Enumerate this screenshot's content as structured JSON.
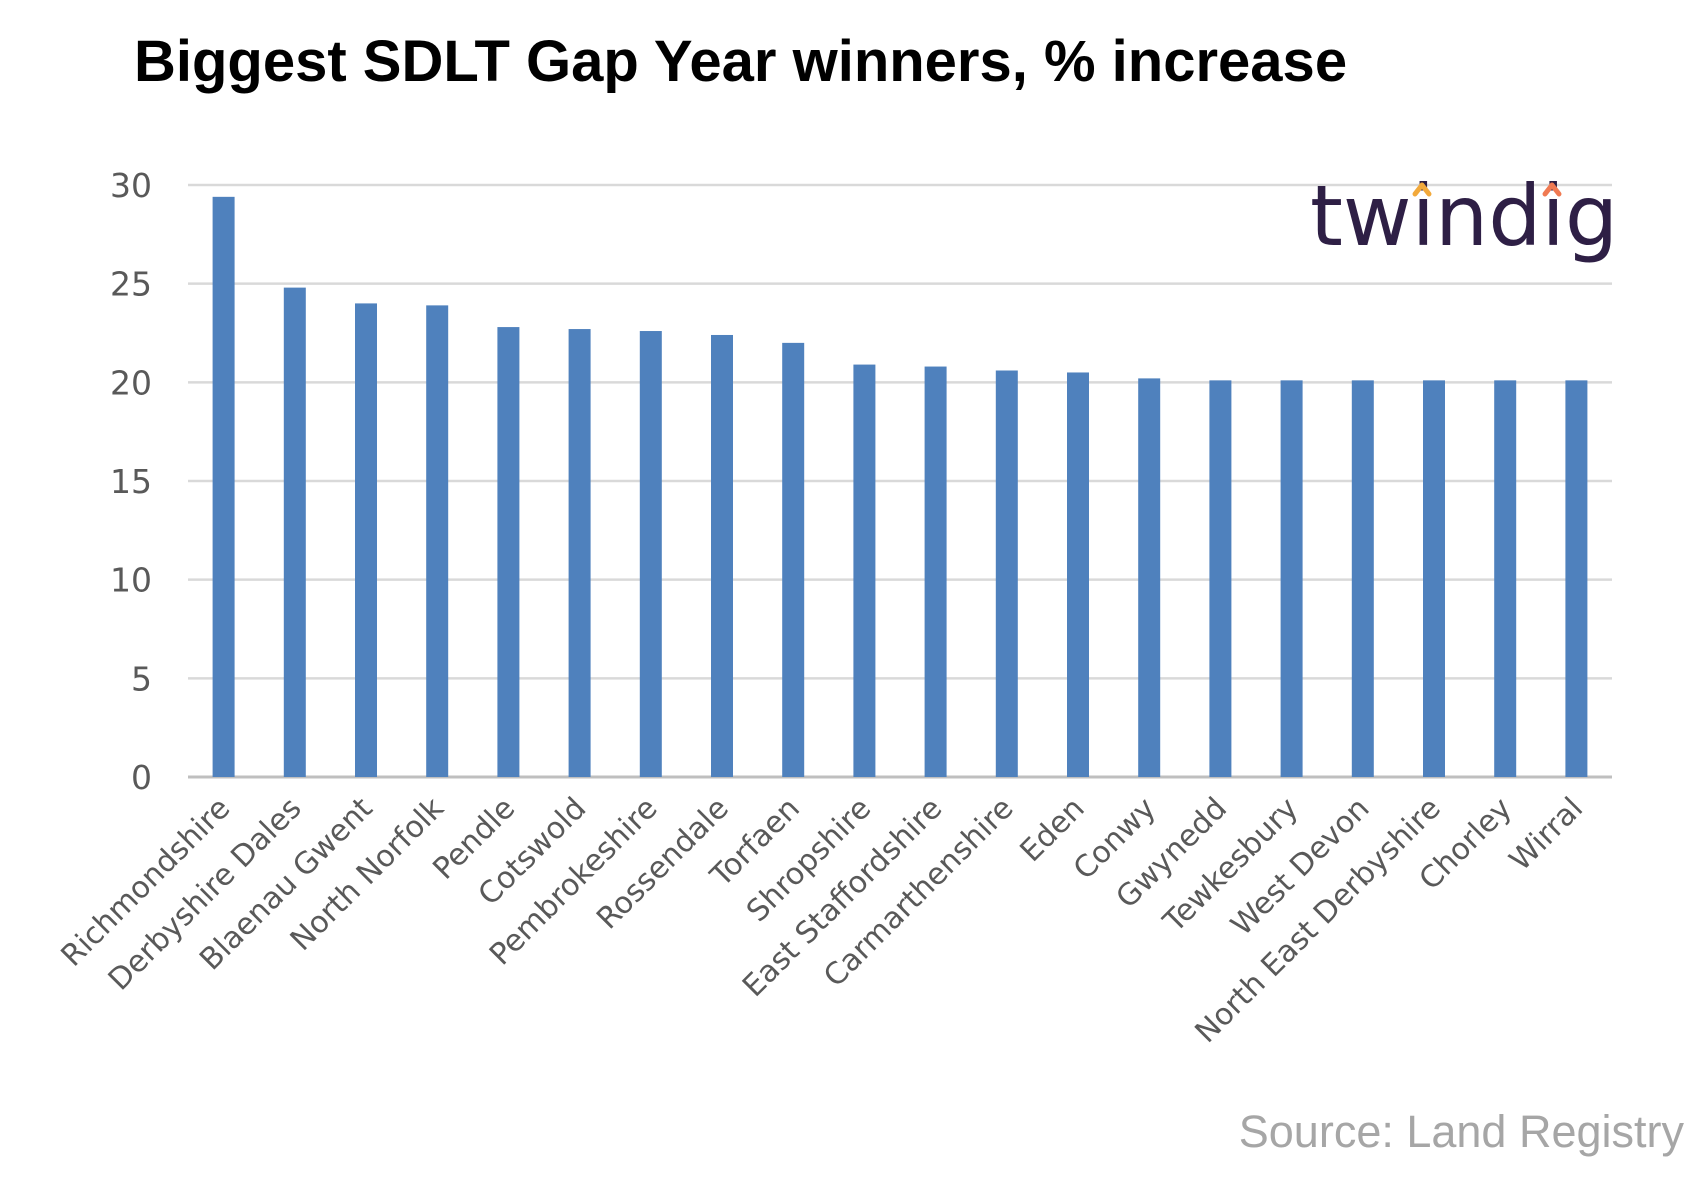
{
  "title": "Biggest SDLT Gap Year winners, % increase",
  "source": "Source: Land Registry",
  "logo": {
    "text": "twindig",
    "text_color": "#2e1f45",
    "accent_color": "#f07a52",
    "accent_color_2": "#f2a93b"
  },
  "chart_data": {
    "type": "bar",
    "title": "Biggest SDLT Gap Year winners, % increase",
    "xlabel": "",
    "ylabel": "",
    "categories": [
      "Richmondshire",
      "Derbyshire Dales",
      "Blaenau Gwent",
      "North Norfolk",
      "Pendle",
      "Cotswold",
      "Pembrokeshire",
      "Rossendale",
      "Torfaen",
      "Shropshire",
      "East Staffordshire",
      "Carmarthenshire",
      "Eden",
      "Conwy",
      "Gwynedd",
      "Tewkesbury",
      "West Devon",
      "North East Derbyshire",
      "Chorley",
      "Wirral"
    ],
    "values": [
      29.4,
      24.8,
      24.0,
      23.9,
      22.8,
      22.7,
      22.6,
      22.4,
      22.0,
      20.9,
      20.8,
      20.6,
      20.5,
      20.2,
      20.1,
      20.1,
      20.1,
      20.1,
      20.1,
      20.1
    ],
    "ylim": [
      0,
      30
    ],
    "yticks": [
      "0",
      "5",
      "10",
      "15",
      "20",
      "25",
      "30"
    ],
    "grid": true,
    "legend": "none",
    "bar_color": "#4f81bd",
    "grid_color": "#d9d9d9",
    "axis_color": "#bfbfbf"
  }
}
